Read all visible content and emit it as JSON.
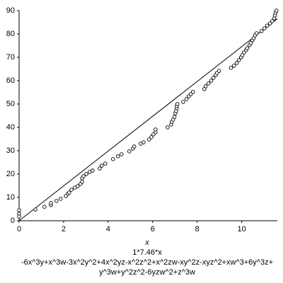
{
  "chart_data": {
    "type": "scatter",
    "xlabel": "x",
    "captions": [
      "1*7.46*x",
      "-6x^3y+x^3w-3x^2y^2+4x^2yz-x^2z^2+x^2zw-xy^2z-xyz^2+xw^3+6y^3z+",
      "y^3w+y^2z^2-6yzw^2+z^3w"
    ],
    "xlim": [
      0,
      11.6
    ],
    "ylim": [
      0,
      90
    ],
    "xticks": [
      0,
      2,
      4,
      6,
      8,
      10
    ],
    "yticks": [
      0,
      10,
      20,
      30,
      40,
      50,
      60,
      70,
      80,
      90
    ],
    "color": "#000000",
    "x": [
      0,
      0,
      0,
      0.73,
      1.14,
      1.43,
      1.43,
      1.68,
      1.87,
      2.1,
      2.19,
      2.25,
      2.35,
      2.5,
      2.63,
      2.76,
      2.83,
      2.83,
      2.89,
      3.02,
      3.17,
      3.3,
      3.62,
      3.71,
      3.87,
      4.22,
      4.44,
      4.6,
      4.95,
      5.11,
      5.17,
      5.46,
      5.59,
      5.84,
      5.94,
      6.03,
      6.13,
      6.13,
      6.67,
      6.83,
      6.86,
      6.92,
      6.98,
      7.02,
      7.05,
      7.08,
      7.08,
      7.11,
      7.37,
      7.52,
      7.62,
      7.71,
      7.81,
      8.32,
      8.38,
      8.51,
      8.63,
      8.73,
      8.83,
      8.89,
      8.98,
      9.52,
      9.65,
      9.78,
      9.87,
      9.97,
      10.03,
      10.1,
      10.19,
      10.25,
      10.35,
      10.41,
      10.48,
      10.54,
      10.6,
      10.67,
      10.89,
      11.02,
      11.14,
      11.27,
      11.37,
      11.46,
      11.49,
      11.52,
      11.56
    ],
    "values": [
      4.5,
      3,
      1.8,
      4.8,
      6,
      6.7,
      7.6,
      8.5,
      9.4,
      10.6,
      11.5,
      12.1,
      13.3,
      14.2,
      14.8,
      15.8,
      16.7,
      18.2,
      19.1,
      20,
      20.9,
      21.5,
      22.4,
      23.6,
      24.5,
      26.4,
      27.6,
      28.5,
      29.7,
      30.9,
      31.8,
      33,
      33.6,
      34.8,
      35.8,
      37,
      37.9,
      39.1,
      40,
      41.2,
      42.4,
      43.3,
      44.5,
      46,
      47,
      48.2,
      49.1,
      50,
      50.9,
      52.1,
      53.3,
      54.2,
      55.2,
      56.4,
      57.6,
      58.8,
      60,
      61.2,
      62.4,
      63.3,
      64.2,
      65.5,
      66.4,
      67.6,
      68.8,
      70,
      70.9,
      72.1,
      73,
      73.9,
      75.2,
      76.1,
      77.3,
      78.2,
      79.4,
      80.3,
      81.2,
      82.4,
      83.6,
      84.5,
      85.5,
      86.7,
      87.9,
      89.1,
      90
    ],
    "line": {
      "x": [
        0,
        11.6
      ],
      "values": [
        0,
        86.5
      ]
    }
  }
}
